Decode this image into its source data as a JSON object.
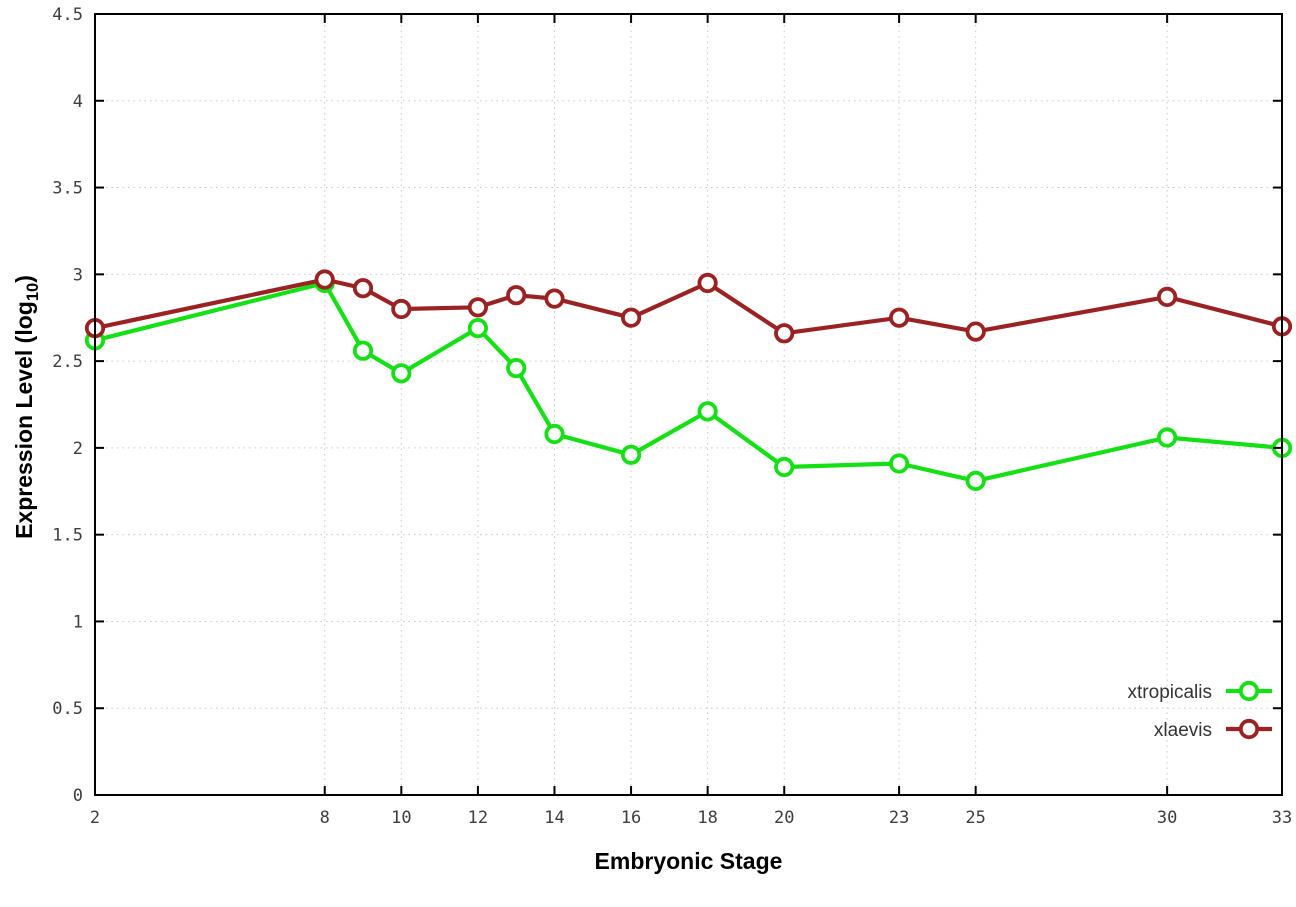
{
  "chart_data": {
    "type": "line",
    "x": [
      2,
      8,
      9,
      10,
      12,
      13,
      14,
      16,
      18,
      20,
      23,
      25,
      30,
      33
    ],
    "series": [
      {
        "name": "xtropicalis",
        "color": "#15e015",
        "values": [
          2.62,
          2.95,
          2.56,
          2.43,
          2.69,
          2.46,
          2.08,
          1.96,
          2.21,
          1.89,
          1.91,
          1.81,
          2.06,
          2.0
        ]
      },
      {
        "name": "xlaevis",
        "color": "#9b2222",
        "values": [
          2.69,
          2.97,
          2.92,
          2.8,
          2.81,
          2.88,
          2.86,
          2.75,
          2.95,
          2.66,
          2.75,
          2.67,
          2.87,
          2.7
        ]
      }
    ],
    "title": "",
    "xlabel": "Embryonic Stage",
    "ylabel": {
      "prefix": "Expression Level (log",
      "sub": "10",
      "suffix": ")"
    },
    "xlim": [
      2,
      33
    ],
    "ylim": [
      0,
      4.5
    ],
    "xticks": [
      2,
      8,
      10,
      12,
      14,
      16,
      18,
      20,
      23,
      25,
      30,
      33
    ],
    "yticks": [
      0,
      0.5,
      1,
      1.5,
      2,
      2.5,
      3,
      3.5,
      4,
      4.5
    ],
    "ytick_labels": [
      "0",
      "0.5",
      "1",
      "1.5",
      "2",
      "2.5",
      "3",
      "3.5",
      "4",
      "4.5"
    ],
    "grid": true,
    "legend_position": "bottom-right",
    "marker": "open-circle",
    "colors": {
      "background": "#ffffff",
      "border": "#000000",
      "grid": "#c9c9c9"
    }
  }
}
